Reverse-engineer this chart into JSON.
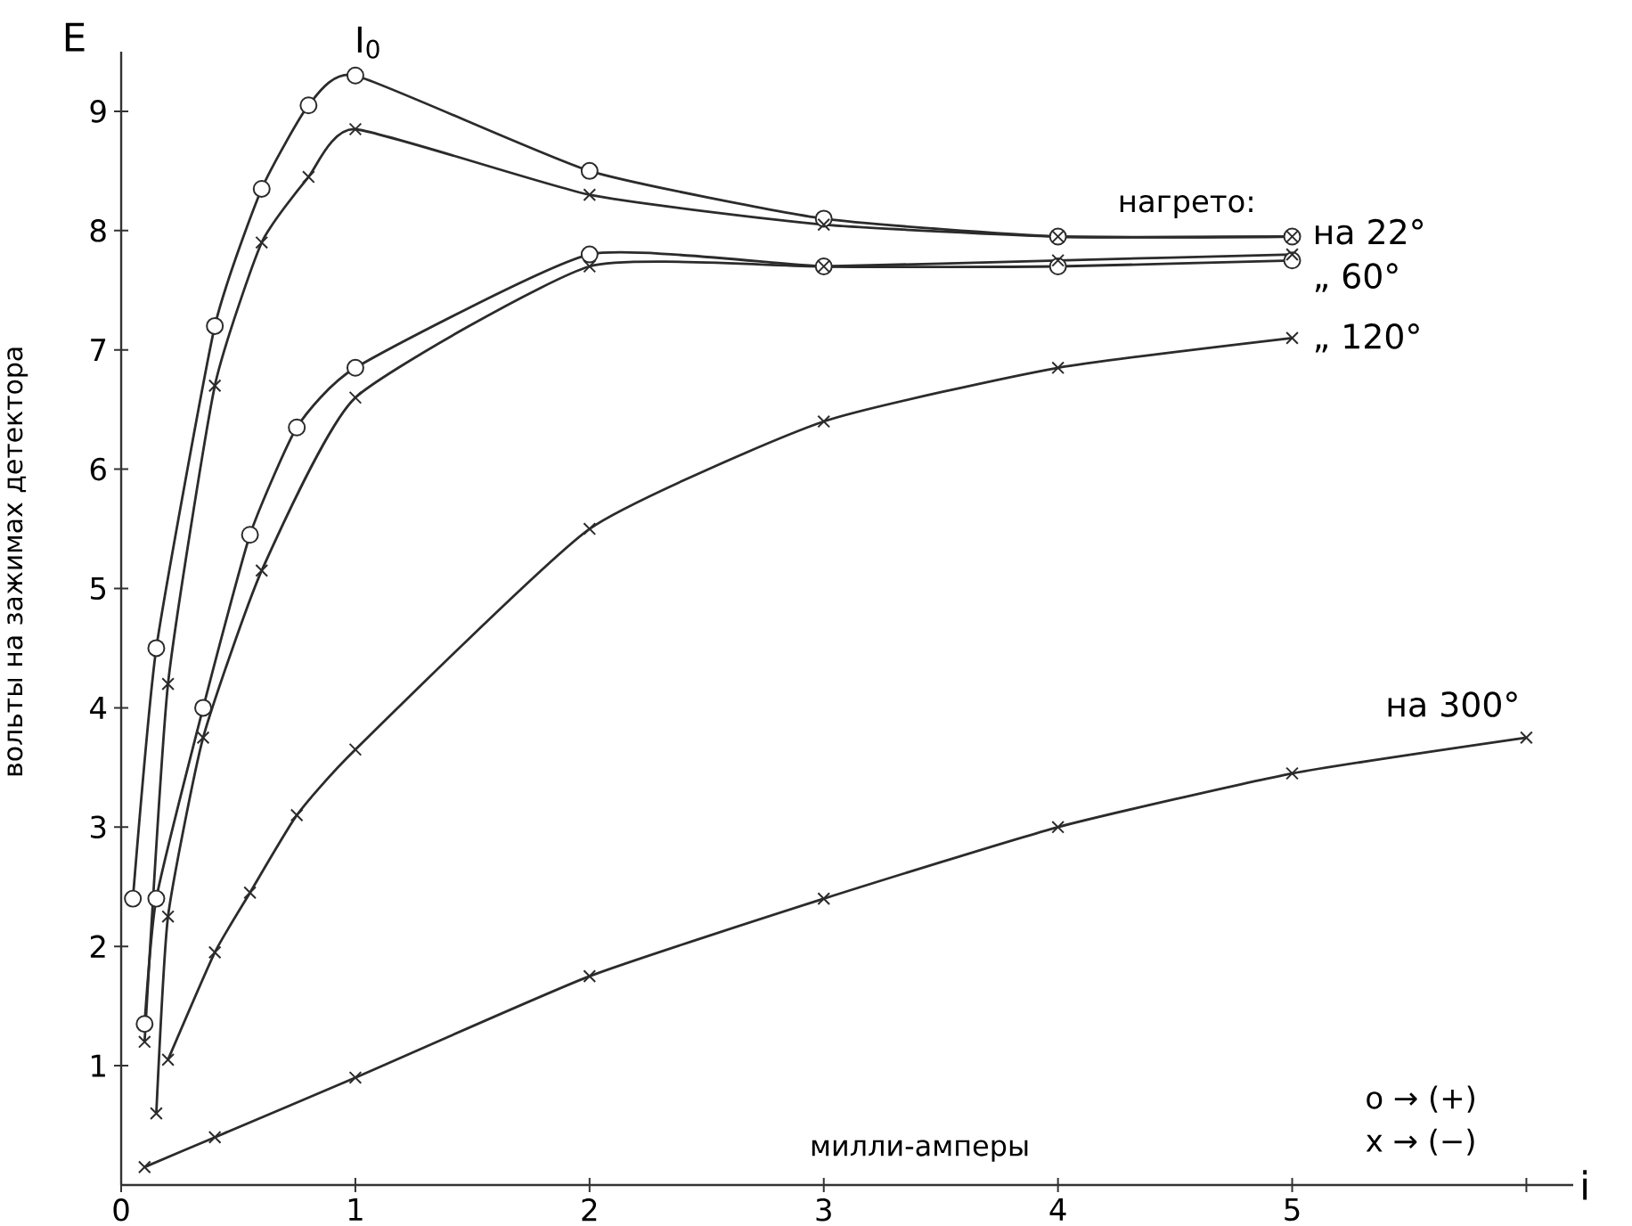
{
  "chart_data": {
    "type": "line",
    "ylabel": "вольты на зажимах детектора",
    "xlabel": "милли-амперы",
    "annotations": [
      "E",
      "i",
      "нагрето:",
      {
        "text": "I$_{0}$",
        "x": 1,
        "y": 9.3
      },
      "o → (+)",
      "x → (−)"
    ],
    "xlim": [
      0,
      6.2
    ],
    "ylim": [
      0,
      9.5
    ],
    "xticks": [
      0,
      1,
      2,
      3,
      4,
      5,
      {
        "value": 6,
        "label": null
      }
    ],
    "yticks": [
      1,
      2,
      3,
      4,
      5,
      6,
      7,
      8,
      9
    ],
    "series": [
      {
        "name": "на 22°",
        "color": "#2b2b2b",
        "marker": "circle",
        "x": [
          0.05,
          0.15,
          0.4,
          0.6,
          0.8,
          1,
          2,
          3,
          4,
          5
        ],
        "values": [
          2.4,
          4.5,
          7.2,
          8.35,
          9.05,
          9.3,
          8.5,
          8.1,
          7.95,
          7.95
        ]
      },
      {
        "color": "#2b2b2b",
        "marker": "cross",
        "x": [
          0.1,
          0.2,
          0.4,
          0.6,
          0.8,
          1,
          2,
          3,
          4,
          5
        ],
        "values": [
          1.2,
          4.2,
          6.7,
          7.9,
          8.45,
          8.85,
          8.3,
          8.05,
          7.95,
          7.95
        ]
      },
      {
        "name": "„ 60°",
        "color": "#2b2b2b",
        "marker": "circle",
        "x": [
          0.1,
          0.15,
          0.35,
          0.55,
          0.75,
          1,
          2,
          3,
          4,
          5
        ],
        "values": [
          1.35,
          2.4,
          4.0,
          5.45,
          6.35,
          6.85,
          7.8,
          7.7,
          7.7,
          7.75
        ]
      },
      {
        "color": "#2b2b2b",
        "marker": "cross",
        "x": [
          0.15,
          0.2,
          0.35,
          0.6,
          1,
          2,
          3,
          4,
          5
        ],
        "values": [
          0.6,
          2.25,
          3.75,
          5.15,
          6.6,
          7.7,
          7.7,
          7.75,
          7.8
        ]
      },
      {
        "name": "„ 120°",
        "color": "#2b2b2b",
        "marker": "cross",
        "x": [
          0.2,
          0.4,
          0.55,
          0.75,
          1,
          2,
          3,
          4,
          5
        ],
        "values": [
          1.05,
          1.95,
          2.45,
          3.1,
          3.65,
          5.5,
          6.4,
          6.85,
          7.1
        ]
      },
      {
        "name": "на 300°",
        "color": "#2b2b2b",
        "marker": "cross",
        "x": [
          0.1,
          0.4,
          1,
          2,
          3,
          4,
          5,
          6
        ],
        "values": [
          0.15,
          0.4,
          0.9,
          1.75,
          2.4,
          3.0,
          3.45,
          3.75
        ]
      }
    ]
  }
}
